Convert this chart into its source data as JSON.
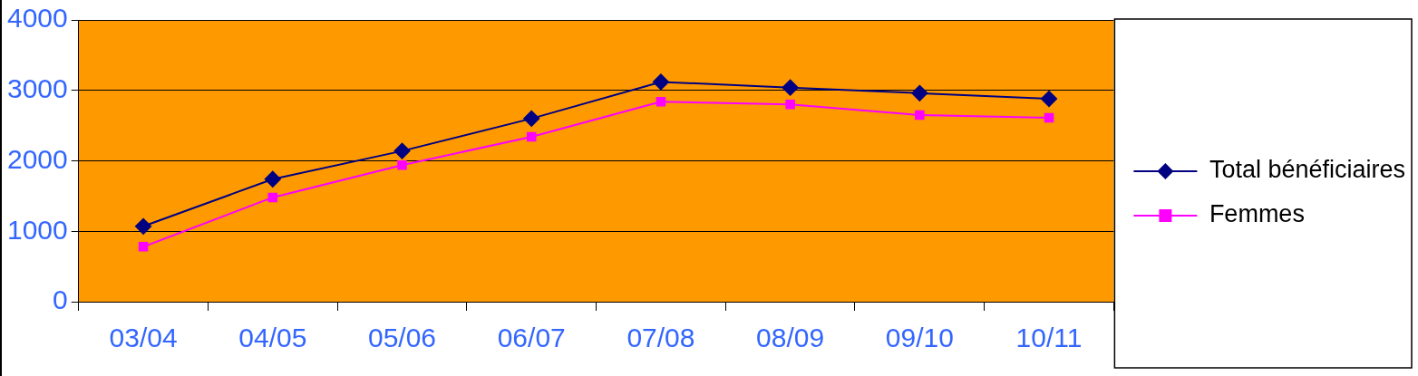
{
  "chart_data": {
    "type": "line",
    "categories": [
      "03/04",
      "04/05",
      "05/06",
      "06/07",
      "07/08",
      "08/09",
      "09/10",
      "10/11"
    ],
    "series": [
      {
        "name": "Total bénéficiaires",
        "color": "#000080",
        "marker": "diamond",
        "values": [
          1070,
          1740,
          2140,
          2600,
          3120,
          3040,
          2960,
          2880
        ]
      },
      {
        "name": "Femmes",
        "color": "#ff00ff",
        "marker": "square",
        "values": [
          780,
          1480,
          1940,
          2340,
          2840,
          2800,
          2650,
          2610
        ]
      }
    ],
    "ylim": [
      0,
      4000
    ],
    "yticks": [
      0,
      1000,
      2000,
      3000,
      4000
    ],
    "grid": "y",
    "legend": "right"
  }
}
